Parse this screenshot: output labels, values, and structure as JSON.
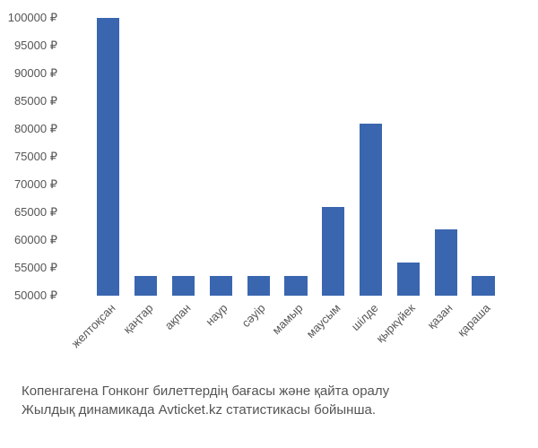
{
  "chart": {
    "type": "bar",
    "categories": [
      "желтоқсан",
      "қаңтар",
      "ақпан",
      "наур",
      "сәуір",
      "мамыр",
      "маусым",
      "шілде",
      "қыркүйек",
      "қазан",
      "қараша"
    ],
    "values": [
      100000,
      53500,
      53500,
      53500,
      53500,
      53500,
      66000,
      81000,
      56000,
      62000,
      53500
    ],
    "bar_color": "#3a66b0",
    "background_color": "#ffffff",
    "ylim": [
      50000,
      100000
    ],
    "ytick_step": 5000,
    "y_ticks": [
      50000,
      55000,
      60000,
      65000,
      70000,
      75000,
      80000,
      85000,
      90000,
      95000,
      100000
    ],
    "y_tick_labels": [
      "50000 ₽",
      "55000 ₽",
      "60000 ₽",
      "65000 ₽",
      "70000 ₽",
      "75000 ₽",
      "80000 ₽",
      "85000 ₽",
      "90000 ₽",
      "95000 ₽",
      "100000 ₽"
    ],
    "axis_label_color": "#555555",
    "axis_label_fontsize": 13,
    "x_label_rotation": -45,
    "bar_width_ratio": 0.6
  },
  "caption": {
    "line1": "Копенгагена Гонконг билеттердің бағасы және қайта оралу",
    "line2": "Жылдық динамикада Avticket.kz статистикасы бойынша.",
    "color": "#555555",
    "fontsize": 15
  }
}
